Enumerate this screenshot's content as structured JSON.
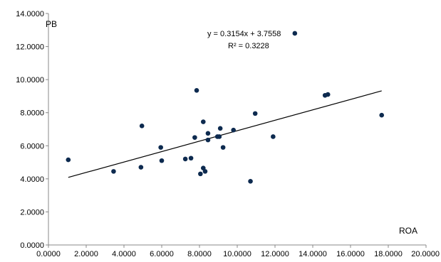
{
  "chart_data": {
    "type": "scatter",
    "xlabel": "ROA",
    "ylabel": "PB",
    "xlim": [
      0,
      20
    ],
    "ylim": [
      0,
      14
    ],
    "x_ticks": [
      "0.0000",
      "2.0000",
      "4.0000",
      "6.0000",
      "8.0000",
      "10.0000",
      "12.0000",
      "14.0000",
      "16.0000",
      "18.0000",
      "20.0000"
    ],
    "y_ticks": [
      "0.0000",
      "2.0000",
      "4.0000",
      "6.0000",
      "8.0000",
      "10.0000",
      "12.0000",
      "14.0000"
    ],
    "grid": false,
    "marker_color": "#0d2a4f",
    "series": [
      {
        "points": [
          [
            1.05,
            5.15
          ],
          [
            3.45,
            4.45
          ],
          [
            4.9,
            4.7
          ],
          [
            4.95,
            7.2
          ],
          [
            5.95,
            5.9
          ],
          [
            6.0,
            5.1
          ],
          [
            7.25,
            5.2
          ],
          [
            7.55,
            5.25
          ],
          [
            7.75,
            6.5
          ],
          [
            7.85,
            9.35
          ],
          [
            8.05,
            4.3
          ],
          [
            8.2,
            4.65
          ],
          [
            8.2,
            7.45
          ],
          [
            8.3,
            4.45
          ],
          [
            8.45,
            6.35
          ],
          [
            8.45,
            6.75
          ],
          [
            8.95,
            6.55
          ],
          [
            9.05,
            6.55
          ],
          [
            9.1,
            7.05
          ],
          [
            9.25,
            5.9
          ],
          [
            9.8,
            6.95
          ],
          [
            10.7,
            3.85
          ],
          [
            10.95,
            7.95
          ],
          [
            11.9,
            6.55
          ],
          [
            14.65,
            9.05
          ],
          [
            14.8,
            9.1
          ],
          [
            17.65,
            7.85
          ],
          [
            13.05,
            12.8
          ]
        ]
      }
    ],
    "trendline": {
      "slope": 0.3154,
      "intercept": 3.7558,
      "x_range": [
        1.05,
        17.65
      ],
      "equation": "y = 0.3154x + 3.7558",
      "r_squared": "R² = 0.3228"
    }
  }
}
